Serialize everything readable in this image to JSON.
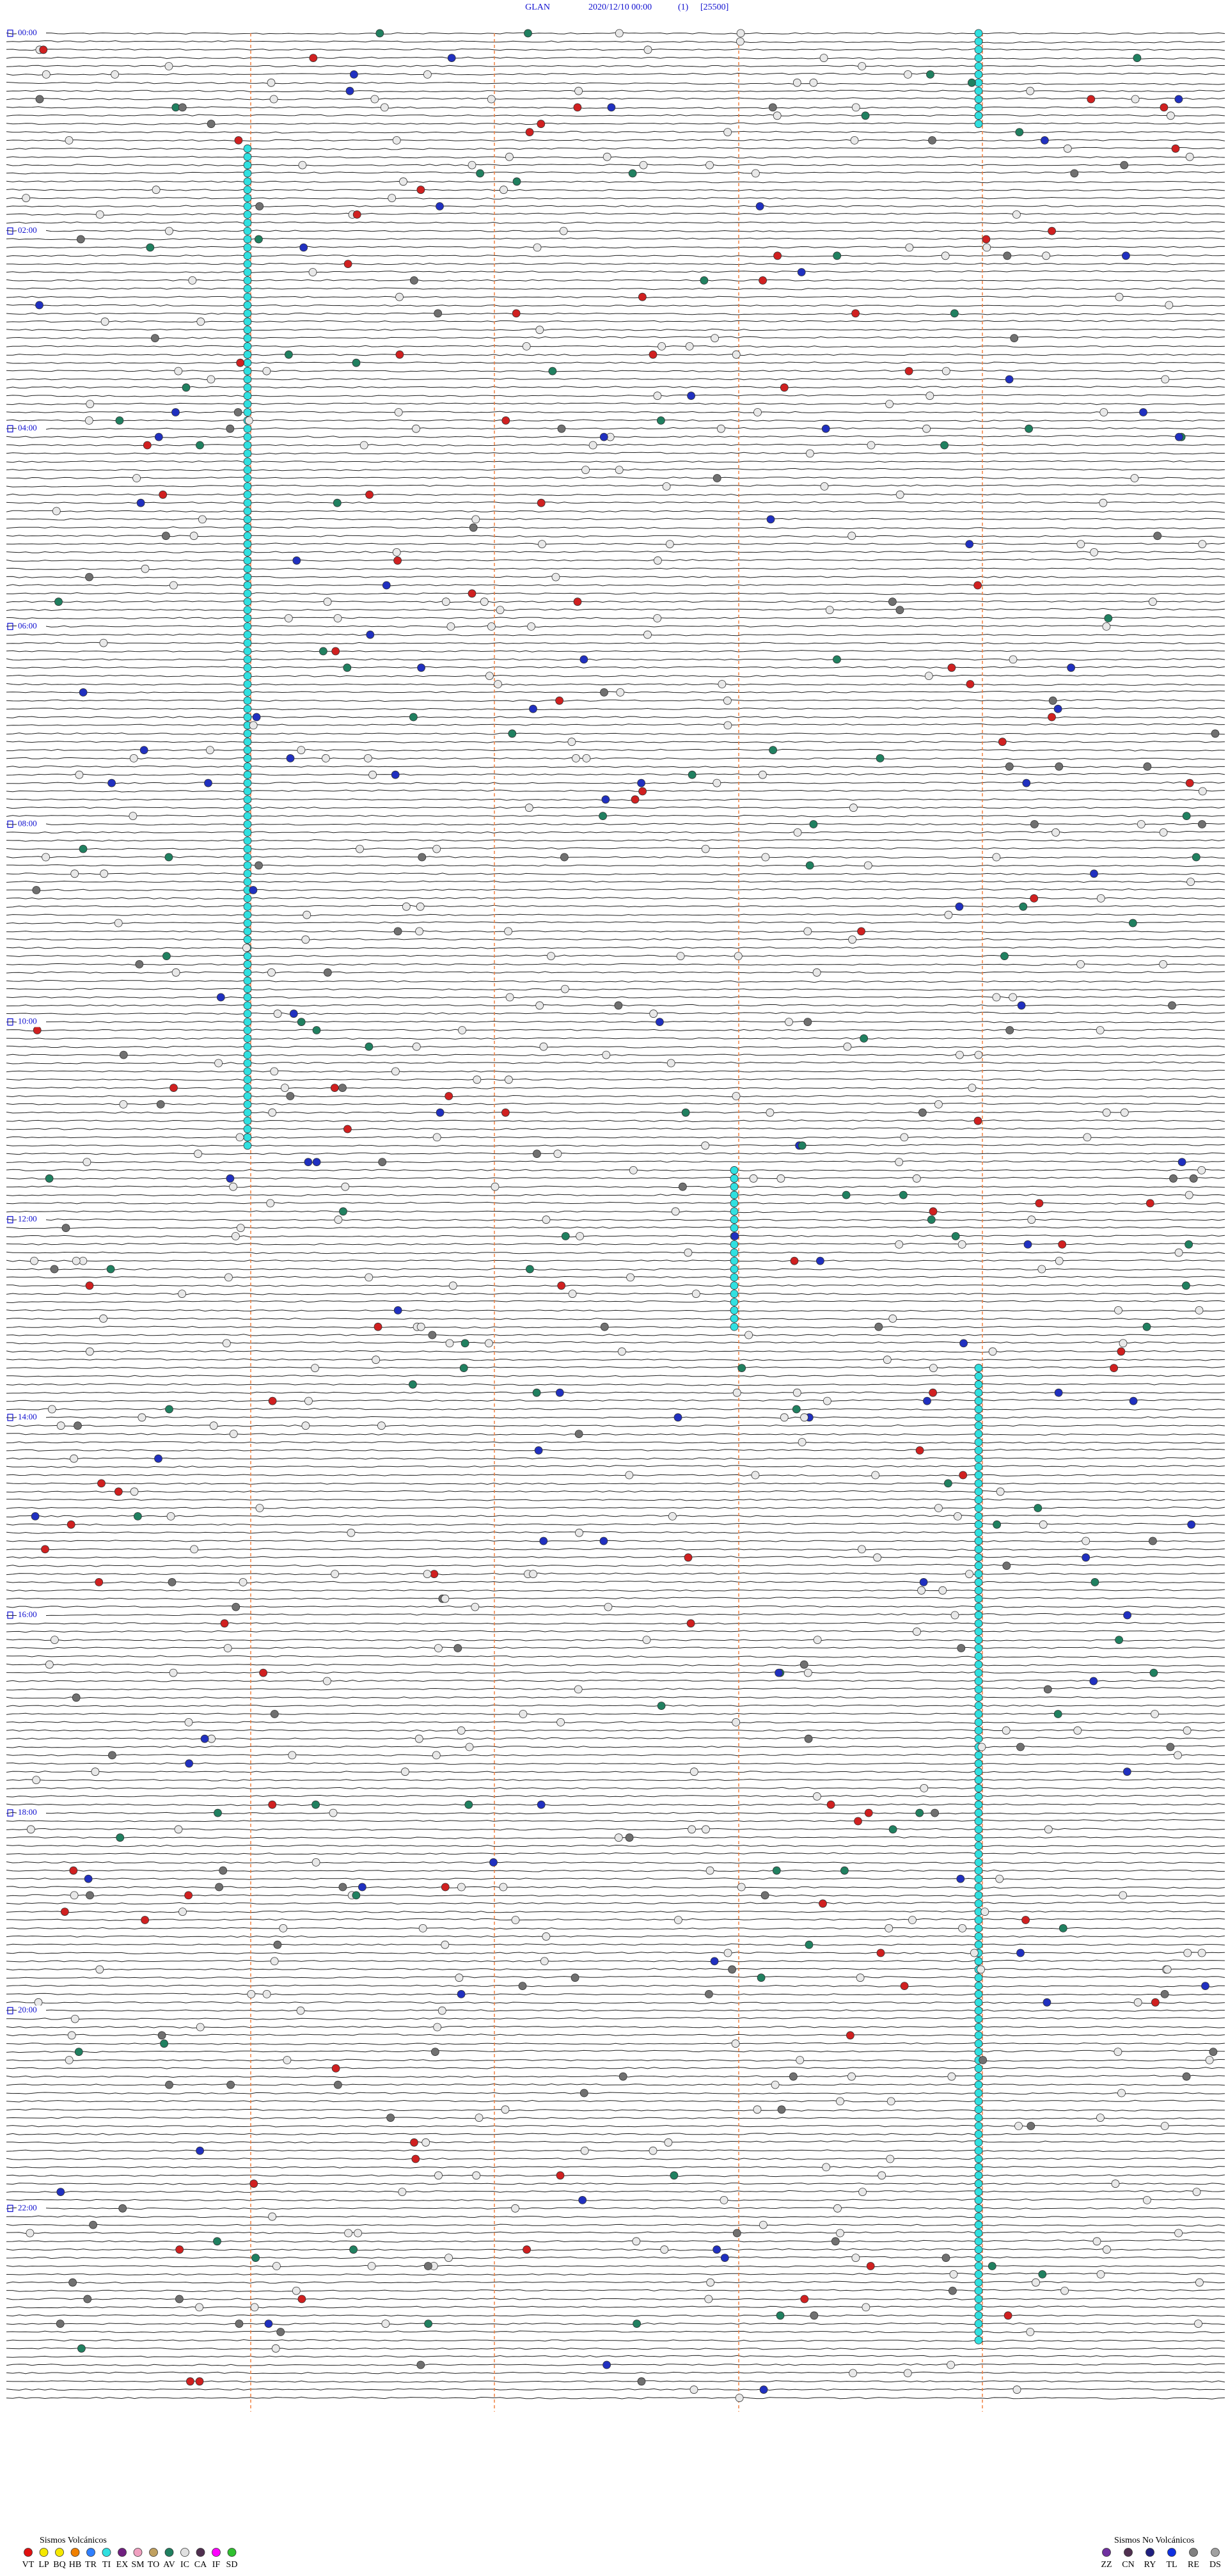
{
  "header": {
    "station": "GLAN",
    "datetime": "2020/12/10 00:00",
    "channel": "(1)",
    "scale": "[25500]"
  },
  "hour_labels": [
    "00:00",
    "02:00",
    "04:00",
    "06:00",
    "08:00",
    "10:00",
    "12:00",
    "14:00",
    "16:00",
    "18:00",
    "20:00",
    "22:00"
  ],
  "legend": {
    "volcanic": {
      "title": "Sismos Volcánicos",
      "items": [
        {
          "code": "VT",
          "color": "#e01010"
        },
        {
          "code": "LP",
          "color": "#f5e800"
        },
        {
          "code": "BQ",
          "color": "#f5e800"
        },
        {
          "code": "HB",
          "color": "#f08000"
        },
        {
          "code": "TR",
          "color": "#3080ff"
        },
        {
          "code": "TI",
          "color": "#30e0e0"
        },
        {
          "code": "EX",
          "color": "#702080"
        },
        {
          "code": "SM",
          "color": "#f0a0c0"
        },
        {
          "code": "TO",
          "color": "#c0a060"
        },
        {
          "code": "AV",
          "color": "#208060"
        },
        {
          "code": "IC",
          "color": "#e0e0e0"
        },
        {
          "code": "CA",
          "color": "#503050"
        },
        {
          "code": "IF",
          "color": "#ff00ff"
        },
        {
          "code": "SD",
          "color": "#30c030"
        }
      ]
    },
    "non_volcanic": {
      "title": "Sismos No Volcánicos",
      "items": [
        {
          "code": "ZZ",
          "color": "#7030a0"
        },
        {
          "code": "CN",
          "color": "#503050"
        },
        {
          "code": "RY",
          "color": "#202080"
        },
        {
          "code": "TL",
          "color": "#1030e0"
        },
        {
          "code": "RE",
          "color": "#808080"
        },
        {
          "code": "DS",
          "color": "#a0a0a0"
        }
      ]
    }
  }
}
